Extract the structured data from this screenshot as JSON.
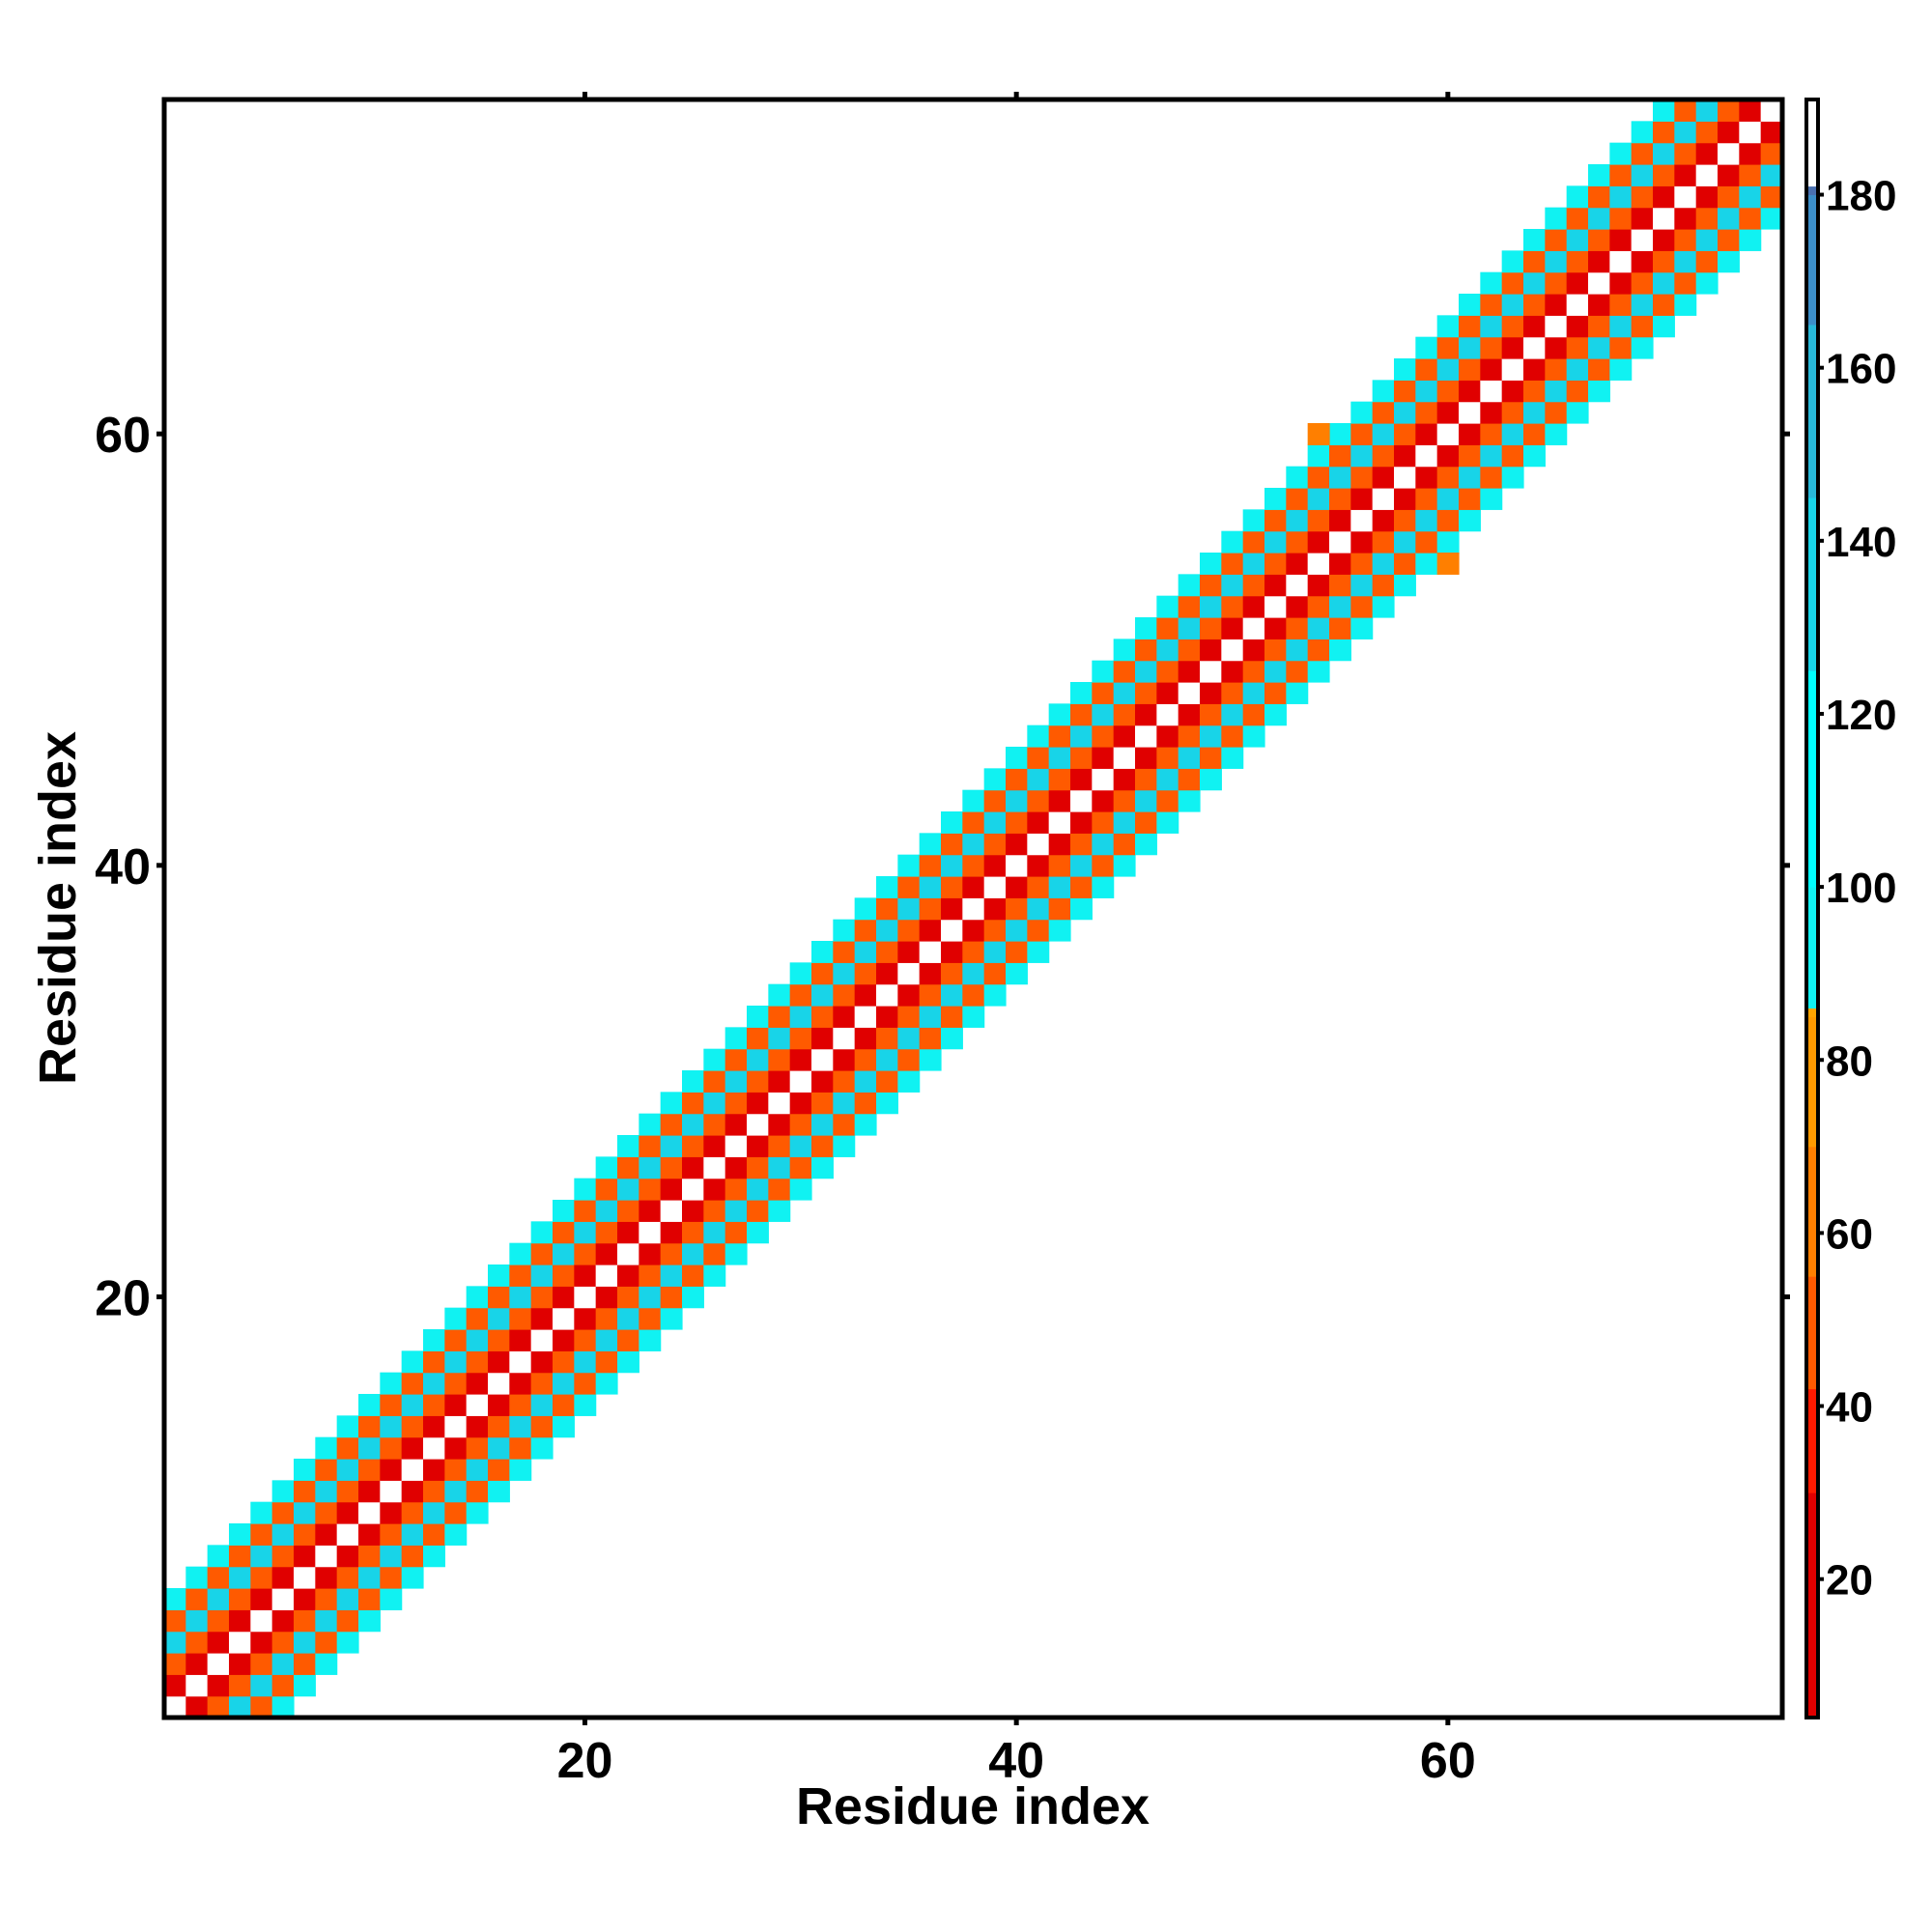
{
  "chart_data": {
    "type": "heatmap",
    "title": "",
    "xlabel": "Residue index",
    "ylabel": "Residue index",
    "xlim": [
      0.5,
      75.5
    ],
    "ylim": [
      0.5,
      75.5
    ],
    "xticks": [
      20,
      40,
      60
    ],
    "yticks": [
      20,
      40,
      60
    ],
    "grid": false,
    "colorbar": {
      "range": [
        4,
        191
      ],
      "ticks": [
        20,
        40,
        60,
        80,
        100,
        120,
        140,
        160,
        180
      ],
      "stops": [
        {
          "value": 4,
          "color": "#e00000"
        },
        {
          "value": 30,
          "color": "#ff1a00"
        },
        {
          "value": 42,
          "color": "#ff5a00"
        },
        {
          "value": 55,
          "color": "#ff7f00"
        },
        {
          "value": 70,
          "color": "#ff9a00"
        },
        {
          "value": 85,
          "color": "#ffa500"
        },
        {
          "value": 86,
          "color": "#10f2f2"
        },
        {
          "value": 100,
          "color": "#00ffff"
        },
        {
          "value": 125,
          "color": "#18d4e8"
        },
        {
          "value": 145,
          "color": "#28b8d8"
        },
        {
          "value": 165,
          "color": "#3c8ec8"
        },
        {
          "value": 180,
          "color": "#4a70b0"
        },
        {
          "value": 181,
          "color": "#ffffff"
        },
        {
          "value": 191,
          "color": "#ffffff"
        }
      ]
    },
    "description_of_values": "Value at (i, j) encodes a contact/angle metric; near-diagonal band |i-j| <= 5 filled in a periodic red/orange/cyan/white pattern, diagonal itself white.",
    "diagonal_bands": [
      {
        "offset": 0,
        "value": 190
      },
      {
        "offset": 1,
        "value": 20
      },
      {
        "offset": 2,
        "value": 50
      },
      {
        "offset": 3,
        "value": 125
      },
      {
        "offset": 4,
        "value": 50
      },
      {
        "offset": 5,
        "value": 95
      }
    ],
    "offdiagonal_points": [
      {
        "x": 54,
        "y": 60,
        "value": 65
      },
      {
        "x": 60,
        "y": 54,
        "value": 65
      }
    ]
  }
}
